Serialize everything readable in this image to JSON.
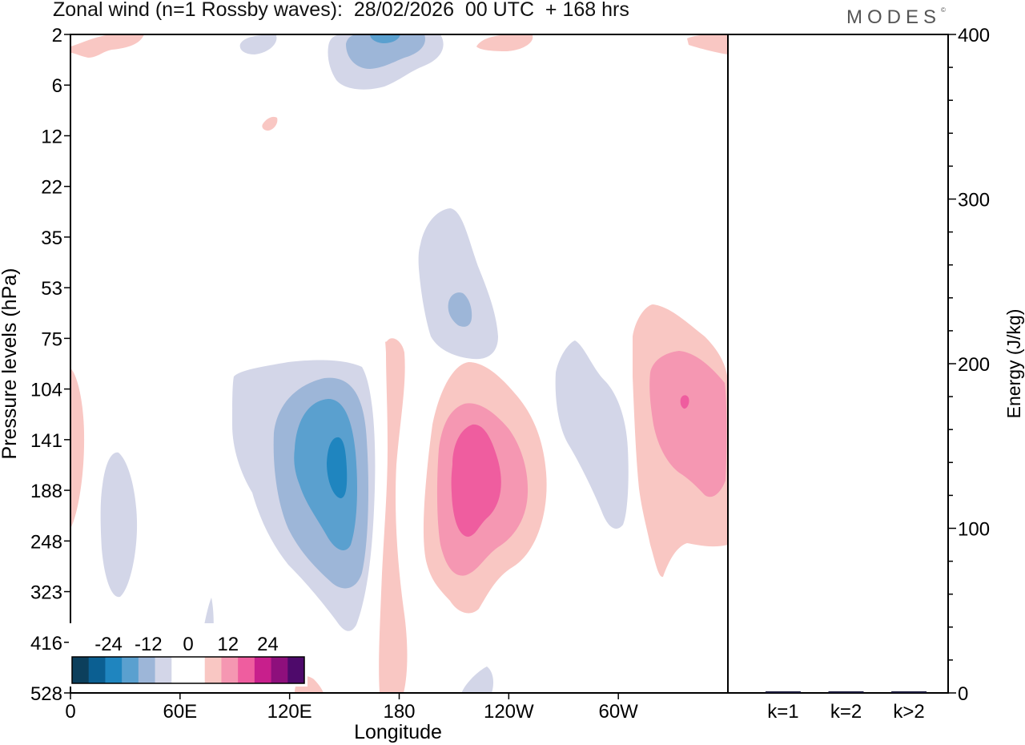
{
  "header": {
    "title": "Zonal wind (n=1 Rossby waves):  28/02/2026  00 UTC  + 168 hrs",
    "logo": "MODES",
    "logo_mark": "©"
  },
  "chart_data": [
    {
      "type": "heatmap",
      "title": "Zonal wind (n=1 Rossby waves):  28/02/2026  00 UTC  + 168 hrs",
      "xlabel": "Longitude",
      "ylabel": "Pressure levels (hPa)",
      "x_ticks": [
        "0",
        "60E",
        "120E",
        "180",
        "120W",
        "60W"
      ],
      "x_tick_degrees": [
        0,
        60,
        120,
        180,
        240,
        300
      ],
      "xlim": [
        0,
        360
      ],
      "y_ticks": [
        "2",
        "6",
        "12",
        "22",
        "35",
        "53",
        "75",
        "104",
        "141",
        "188",
        "248",
        "323",
        "416",
        "528"
      ],
      "colorbar": {
        "tick_labels": [
          "-24",
          "-12",
          "0",
          "12",
          "24"
        ],
        "tick_values": [
          -24,
          -12,
          0,
          12,
          24
        ],
        "colors": [
          "#0c3f5c",
          "#0b5f92",
          "#1f85bf",
          "#5aa0cf",
          "#9db6d8",
          "#d3d6e8",
          "#ffffff",
          "#ffffff",
          "#f9c7c3",
          "#f597b2",
          "#ef5d9f",
          "#c81f8c",
          "#8e0f7c",
          "#4e0a6b"
        ]
      },
      "features": [
        {
          "name": "negative-anomaly-top-center",
          "sign": "negative",
          "center_lon": 168,
          "center_level": "2",
          "min_value": -12
        },
        {
          "name": "negative-anomaly-120E-upper-troposphere",
          "sign": "negative",
          "center_lon": 145,
          "center_level": "160",
          "min_value": -20
        },
        {
          "name": "negative-anomaly-140W-stratosphere",
          "sign": "negative",
          "center_lon": 211,
          "center_level": "60",
          "min_value": -8
        },
        {
          "name": "positive-anomaly-135W-troposphere",
          "sign": "positive",
          "center_lon": 221,
          "center_level": "190",
          "max_value": 12
        },
        {
          "name": "positive-anomaly-40W-troposphere",
          "sign": "positive",
          "center_lon": 335,
          "center_level": "115",
          "max_value": 12
        },
        {
          "name": "negative-anomaly-80W",
          "sign": "negative",
          "center_lon": 283,
          "center_level": "150",
          "min_value": -4
        },
        {
          "name": "positive-anomaly-180-column",
          "sign": "positive",
          "center_lon": 182,
          "center_level": "300",
          "max_value": 4
        }
      ]
    },
    {
      "type": "bar",
      "ylabel": "Energy (J/kg)",
      "categories": [
        "k=1",
        "k=2",
        "k>2"
      ],
      "values": [
        0.6,
        0.4,
        0.6
      ],
      "ylim": [
        0,
        400
      ],
      "y_ticks": [
        "0",
        "100",
        "200",
        "300",
        "400"
      ],
      "y_tick_values": [
        0,
        100,
        200,
        300,
        400
      ]
    }
  ]
}
